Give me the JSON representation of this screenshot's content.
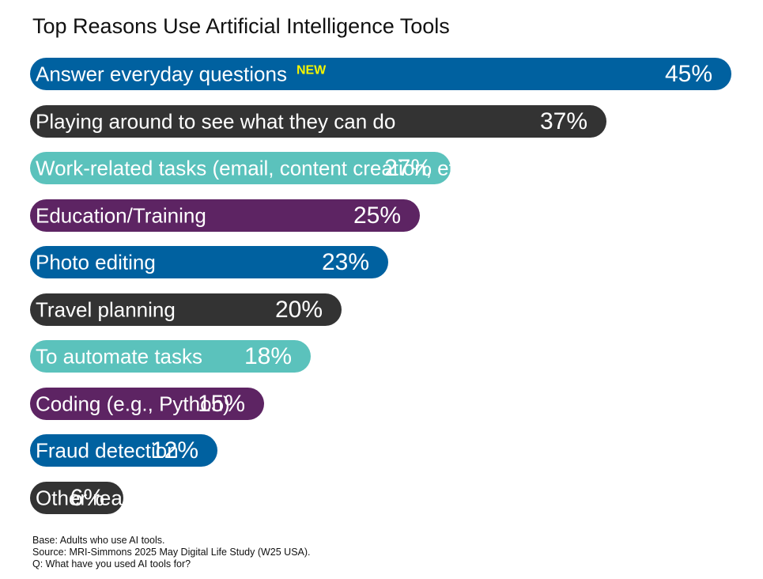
{
  "chart_data": {
    "type": "bar",
    "orientation": "horizontal",
    "title": "Top Reasons Use Artificial Intelligence Tools",
    "xlabel": "",
    "ylabel": "",
    "xlim": [
      0,
      45
    ],
    "grid": false,
    "legend": "none",
    "categories": [
      "Answer everyday questions",
      "Playing around to see what they can do",
      "Work-related tasks (email, content creation, etc.)",
      "Education/Training",
      "Photo editing",
      "Travel planning",
      "To automate tasks",
      "Coding (e.g., Python)",
      "Fraud detection",
      "Other reason"
    ],
    "values": [
      45,
      37,
      27,
      25,
      23,
      20,
      18,
      15,
      12,
      6
    ],
    "value_labels": [
      "45%",
      "37%",
      "27%",
      "25%",
      "23%",
      "20%",
      "18%",
      "15%",
      "12%",
      "6%"
    ],
    "colors": [
      "#0061a0",
      "#333333",
      "#5bc2bc",
      "#5d2463",
      "#0061a0",
      "#333333",
      "#5bc2bc",
      "#5d2463",
      "#0061a0",
      "#333333"
    ],
    "annotations": [
      {
        "category": "Answer everyday questions",
        "text": "NEW",
        "color": "#f5f500"
      }
    ]
  },
  "footnotes": [
    "Base: Adults who use AI tools.",
    "Source: MRI-Simmons 2025 May Digital Life Study (W25 USA).",
    "Q: What have you used AI tools for?"
  ]
}
